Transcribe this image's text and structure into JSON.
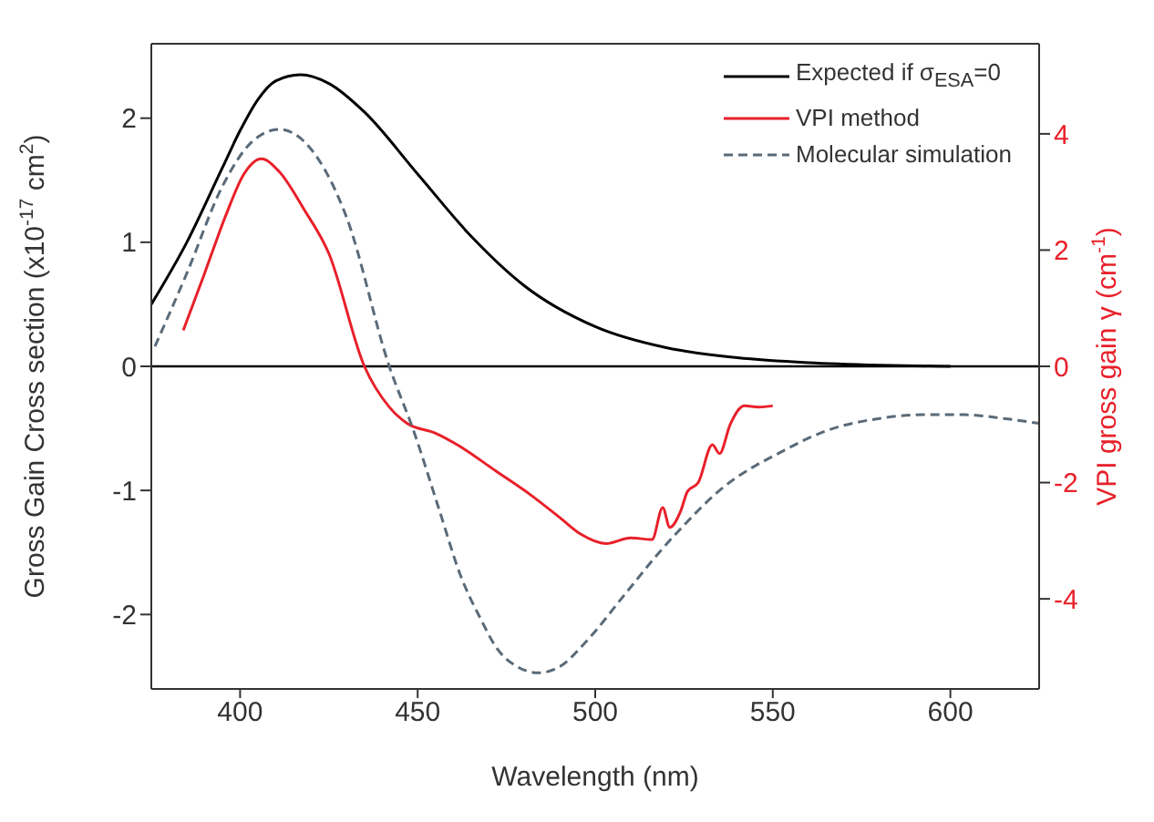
{
  "chart_data": {
    "type": "line",
    "xlabel": "Wavelength (nm)",
    "ylabel": "Gross Gain Cross section (x10$^{-17}$ cm$^{2}$)",
    "y2label": "VPI gross gain γ (cm$^{-1}$)",
    "xlim": [
      375,
      625
    ],
    "xticks": [
      400,
      450,
      500,
      550,
      600
    ],
    "ylim": [
      -2.6,
      2.6
    ],
    "yticks": [
      -2,
      -1,
      0,
      1,
      2
    ],
    "y2lim": [
      -5.55,
      5.55
    ],
    "y2ticks": [
      -4,
      -2,
      0,
      2,
      4
    ],
    "legend": "top right",
    "ref_lines": [
      {
        "axis": "y",
        "value": 0,
        "color": "#000000"
      }
    ],
    "series": [
      {
        "name": "Expected if σ$_{ESA}$=0",
        "color": "#000000",
        "line_style": "solid",
        "x": [
          375,
          385,
          395,
          400,
          405,
          410,
          417,
          425,
          435,
          450,
          465,
          480,
          500,
          520,
          540,
          560,
          580,
          600
        ],
        "values": [
          0.5,
          1.0,
          1.6,
          1.9,
          2.15,
          2.3,
          2.35,
          2.28,
          2.05,
          1.55,
          1.05,
          0.65,
          0.32,
          0.15,
          0.07,
          0.03,
          0.01,
          0
        ]
      },
      {
        "name": "VPI method",
        "color": "#e8202a",
        "line_style": "solid",
        "axis": "y2",
        "x": [
          384,
          390,
          396,
          401,
          406,
          411,
          418,
          425,
          435,
          442,
          447,
          455,
          462,
          472,
          482,
          490,
          496,
          503,
          510,
          516,
          519,
          521,
          524,
          526,
          529,
          533,
          535,
          538,
          542,
          546,
          550
        ],
        "values": [
          0.62,
          1.6,
          2.6,
          3.3,
          3.57,
          3.35,
          2.7,
          1.94,
          0,
          -0.7,
          -0.98,
          -1.15,
          -1.38,
          -1.8,
          -2.22,
          -2.6,
          -2.89,
          -3.05,
          -2.95,
          -2.98,
          -2.43,
          -2.77,
          -2.5,
          -2.15,
          -2.0,
          -1.35,
          -1.5,
          -1.0,
          -0.68,
          -0.7,
          -0.68
        ]
      },
      {
        "name": "Molecular simulation",
        "color": "#5a6a78",
        "line_style": "dashed",
        "x": [
          376,
          385,
          395,
          403,
          411,
          420,
          430,
          442,
          449,
          456,
          462,
          468,
          472,
          478,
          484,
          490,
          498,
          508,
          518,
          525,
          535,
          553,
          565,
          580,
          592,
          604,
          615,
          625
        ],
        "values": [
          0.16,
          0.75,
          1.45,
          1.8,
          1.91,
          1.75,
          1.2,
          0,
          -0.53,
          -1.15,
          -1.68,
          -2.05,
          -2.26,
          -2.42,
          -2.47,
          -2.42,
          -2.2,
          -1.85,
          -1.5,
          -1.28,
          -1.0,
          -0.68,
          -0.52,
          -0.42,
          -0.39,
          -0.39,
          -0.42,
          -0.46
        ]
      }
    ]
  }
}
